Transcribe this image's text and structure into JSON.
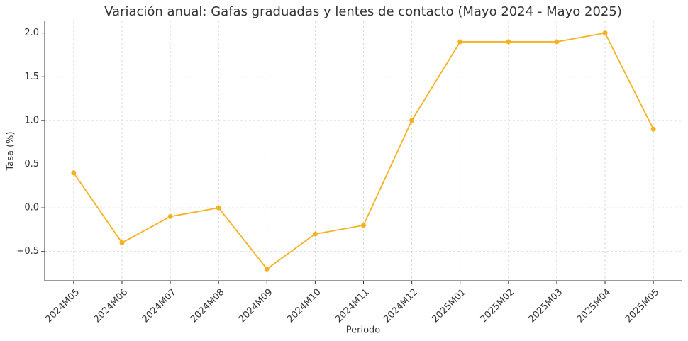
{
  "chart_data": {
    "type": "line",
    "title": "Variación anual: Gafas graduadas y lentes de contacto (Mayo 2024 - Mayo 2025)",
    "xlabel": "Periodo",
    "ylabel": "Tasa (%)",
    "categories": [
      "2024M05",
      "2024M06",
      "2024M07",
      "2024M08",
      "2024M09",
      "2024M10",
      "2024M11",
      "2024M12",
      "2025M01",
      "2025M02",
      "2025M03",
      "2025M04",
      "2025M05"
    ],
    "values": [
      0.4,
      -0.4,
      -0.1,
      0.0,
      -0.7,
      -0.3,
      -0.2,
      1.0,
      1.9,
      1.9,
      1.9,
      2.0,
      0.9
    ],
    "color": "#f5b120",
    "ylim": [
      -0.835,
      2.135
    ],
    "yticks": [
      {
        "value": -0.5,
        "label": "−0.5"
      },
      {
        "value": 0.0,
        "label": "0.0"
      },
      0.5,
      {
        "value": 1.0,
        "label": "1.0"
      },
      1.5,
      {
        "value": 2.0,
        "label": "2.0"
      }
    ],
    "grid": true
  }
}
